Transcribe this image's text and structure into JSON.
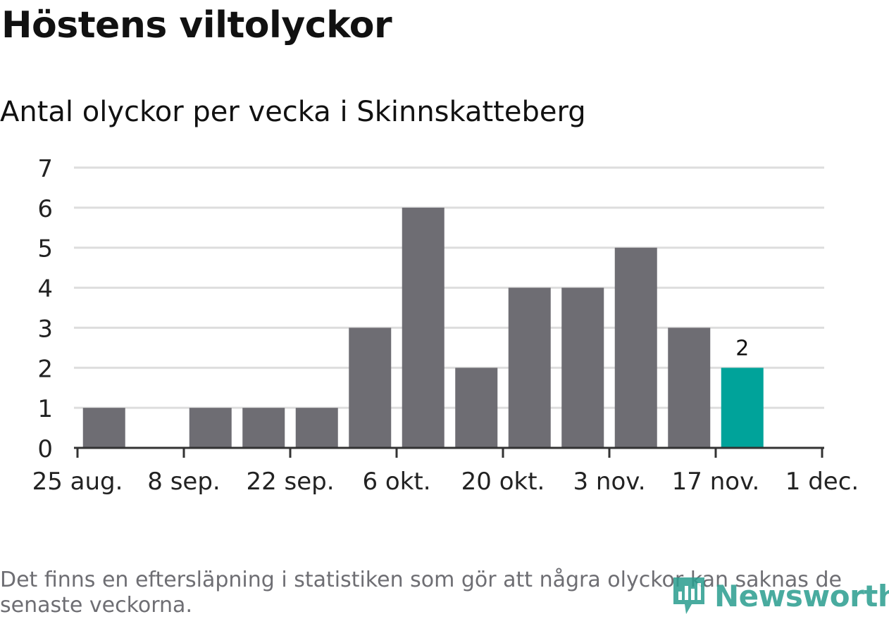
{
  "header": {
    "title": "Höstens viltolyckor",
    "subtitle": "Antal olyckor per vecka i Skinnskatteberg"
  },
  "footer": {
    "note": "Det finns en eftersläpning i statistiken som gör att några olyckor kan saknas de senaste veckorna.",
    "brand": "Newsworthy"
  },
  "colors": {
    "bar": "#6e6d73",
    "highlight": "#00a39a",
    "grid": "#dddddd",
    "axis": "#333333",
    "brand": "#2a9d8f"
  },
  "chart_data": {
    "type": "bar",
    "title": "Höstens viltolyckor",
    "subtitle": "Antal olyckor per vecka i Skinnskatteberg",
    "xlabel": "",
    "ylabel": "",
    "ylim": [
      0,
      7
    ],
    "yticks": [
      0,
      1,
      2,
      3,
      4,
      5,
      6,
      7
    ],
    "grid": true,
    "xtick_labels": [
      "25 aug.",
      "8 sep.",
      "22 sep.",
      "6 okt.",
      "20 okt.",
      "3 nov.",
      "17 nov.",
      "1 dec."
    ],
    "values": [
      1,
      0,
      1,
      1,
      1,
      3,
      6,
      2,
      4,
      4,
      5,
      3,
      2
    ],
    "highlight_index": 12,
    "data_labels": [
      {
        "index": 12,
        "text": "2"
      }
    ]
  }
}
